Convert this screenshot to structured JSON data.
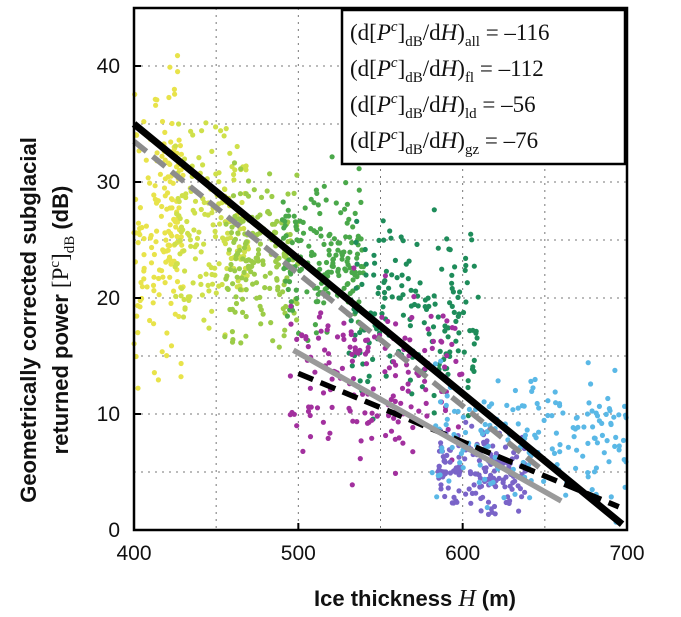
{
  "chart_data": {
    "type": "scatter",
    "title": "",
    "xlabel": {
      "prefix": "Ice thickness ",
      "var": "H",
      "suffix": " (m)"
    },
    "ylabel": {
      "line1": "Geometrically corrected subglacial",
      "line2_prefix": "returned power ",
      "line2_expr": "[P",
      "line2_sup": "c",
      "line2_close": "]",
      "line2_sub": "dB",
      "line2_suffix": " (dB)"
    },
    "xlim": [
      400,
      700
    ],
    "ylim": [
      0,
      45
    ],
    "xticks": [
      400,
      500,
      600,
      700
    ],
    "yticks": [
      0,
      10,
      20,
      30,
      40
    ],
    "grid": "dotted",
    "legend_position": "top-right",
    "legend": [
      {
        "sub": "all",
        "value": "–116"
      },
      {
        "sub": "fl",
        "value": "–112"
      },
      {
        "sub": "ld",
        "value": "–56"
      },
      {
        "sub": "gz",
        "value": "–76"
      }
    ],
    "scatter_clusters": [
      {
        "color": "#e8e34a",
        "x_range": [
          400,
          430
        ],
        "y_range": [
          10,
          43
        ]
      },
      {
        "color": "#cfe04a",
        "x_range": [
          425,
          470
        ],
        "y_range": [
          15,
          37
        ]
      },
      {
        "color": "#9ccc48",
        "x_range": [
          455,
          500
        ],
        "y_range": [
          13,
          33
        ]
      },
      {
        "color": "#4aa84a",
        "x_range": [
          490,
          540
        ],
        "y_range": [
          14,
          33
        ]
      },
      {
        "color": "#1e8c5a",
        "x_range": [
          530,
          610
        ],
        "y_range": [
          8,
          30
        ]
      },
      {
        "color": "#a2309e",
        "x_range": [
          495,
          600
        ],
        "y_range": [
          2,
          24
        ]
      },
      {
        "color": "#7a64c8",
        "x_range": [
          585,
          640
        ],
        "y_range": [
          0,
          10
        ]
      },
      {
        "color": "#5ab8e6",
        "x_range": [
          580,
          700
        ],
        "y_range": [
          0,
          16
        ]
      }
    ],
    "fit_lines": [
      {
        "style": "solid",
        "color": "#000000",
        "x": [
          400,
          697
        ],
        "y": [
          35,
          0.5
        ]
      },
      {
        "style": "dashed",
        "color": "#8c8c8c",
        "x": [
          400,
          650
        ],
        "y": [
          33.5,
          5
        ]
      },
      {
        "style": "dashed",
        "color": "#000000",
        "x": [
          500,
          695
        ],
        "y": [
          13.5,
          2
        ]
      },
      {
        "style": "solid",
        "color": "#9a9a9a",
        "x": [
          497,
          660
        ],
        "y": [
          15.5,
          2.5
        ]
      }
    ]
  }
}
